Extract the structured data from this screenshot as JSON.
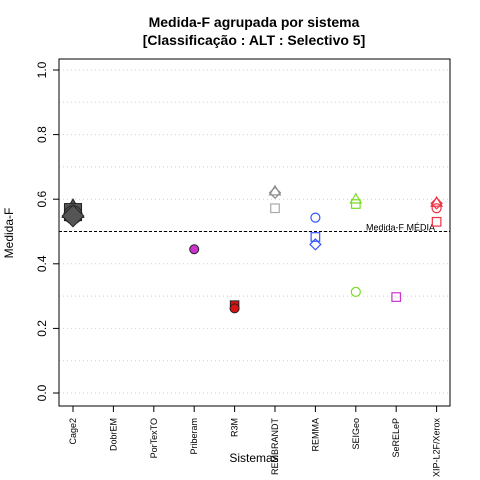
{
  "chart_data": {
    "type": "scatter",
    "title": "Medida-F agrupada por sistema",
    "subtitle": "[Classificação : ALT : Selectivo 5]",
    "xlabel": "Sistemas",
    "ylabel": "Medida-F",
    "ylim": [
      0,
      1
    ],
    "yticks": [
      "0.0",
      "0.2",
      "0.4",
      "0.6",
      "0.8",
      "1.0"
    ],
    "grid": true,
    "categories": [
      "Cage2",
      "DobrEM",
      "PorTexTO",
      "Priberam",
      "R3M",
      "REMBRANDT",
      "REMMA",
      "SEIGeo",
      "SeRELeP",
      "XIP-L2F/Xerox"
    ],
    "reference_line": {
      "label": "Medida-F MÉDIA",
      "value": 0.5
    },
    "points": [
      {
        "category": "Cage2",
        "value": 0.567,
        "shape": "triangle",
        "color": "#555555",
        "size": "large"
      },
      {
        "category": "Cage2",
        "value": 0.56,
        "shape": "square",
        "color": "#555555",
        "size": "large"
      },
      {
        "category": "Cage2",
        "value": 0.552,
        "shape": "circle",
        "color": "#555555",
        "size": "large"
      },
      {
        "category": "Cage2",
        "value": 0.548,
        "shape": "diamond",
        "color": "#555555",
        "size": "large"
      },
      {
        "category": "Priberam",
        "value": 0.445,
        "shape": "circle",
        "color": "#cc33cc",
        "size": "normal"
      },
      {
        "category": "R3M",
        "value": 0.272,
        "shape": "square",
        "color": "#dd1111",
        "size": "normal"
      },
      {
        "category": "R3M",
        "value": 0.262,
        "shape": "circle",
        "color": "#dd1111",
        "size": "normal"
      },
      {
        "category": "REMBRANDT",
        "value": 0.625,
        "shape": "triangle-open",
        "color": "#999999",
        "size": "normal"
      },
      {
        "category": "REMBRANDT",
        "value": 0.62,
        "shape": "diamond-open",
        "color": "#888888",
        "size": "normal"
      },
      {
        "category": "REMBRANDT",
        "value": 0.572,
        "shape": "square-open",
        "color": "#aaaaaa",
        "size": "normal"
      },
      {
        "category": "REMMA",
        "value": 0.543,
        "shape": "circle-open",
        "color": "#3355ff",
        "size": "normal"
      },
      {
        "category": "REMMA",
        "value": 0.483,
        "shape": "square-open",
        "color": "#3355ff",
        "size": "normal"
      },
      {
        "category": "REMMA",
        "value": 0.46,
        "shape": "diamond-open",
        "color": "#3355ff",
        "size": "normal"
      },
      {
        "category": "SEIGeo",
        "value": 0.6,
        "shape": "triangle-open",
        "color": "#77dd22",
        "size": "normal"
      },
      {
        "category": "SEIGeo",
        "value": 0.585,
        "shape": "square-open",
        "color": "#77dd22",
        "size": "normal"
      },
      {
        "category": "SEIGeo",
        "value": 0.313,
        "shape": "circle-open",
        "color": "#77dd22",
        "size": "normal"
      },
      {
        "category": "SeRELeP",
        "value": 0.297,
        "shape": "square-open",
        "color": "#cc33cc",
        "size": "normal"
      },
      {
        "category": "XIP-L2F/Xerox",
        "value": 0.59,
        "shape": "triangle-open",
        "color": "#ee3344",
        "size": "normal"
      },
      {
        "category": "XIP-L2F/Xerox",
        "value": 0.587,
        "shape": "diamond-open",
        "color": "#ee3344",
        "size": "normal"
      },
      {
        "category": "XIP-L2F/Xerox",
        "value": 0.572,
        "shape": "circle-open",
        "color": "#ee3344",
        "size": "normal"
      },
      {
        "category": "XIP-L2F/Xerox",
        "value": 0.53,
        "shape": "square-open",
        "color": "#ee3344",
        "size": "normal"
      }
    ]
  }
}
